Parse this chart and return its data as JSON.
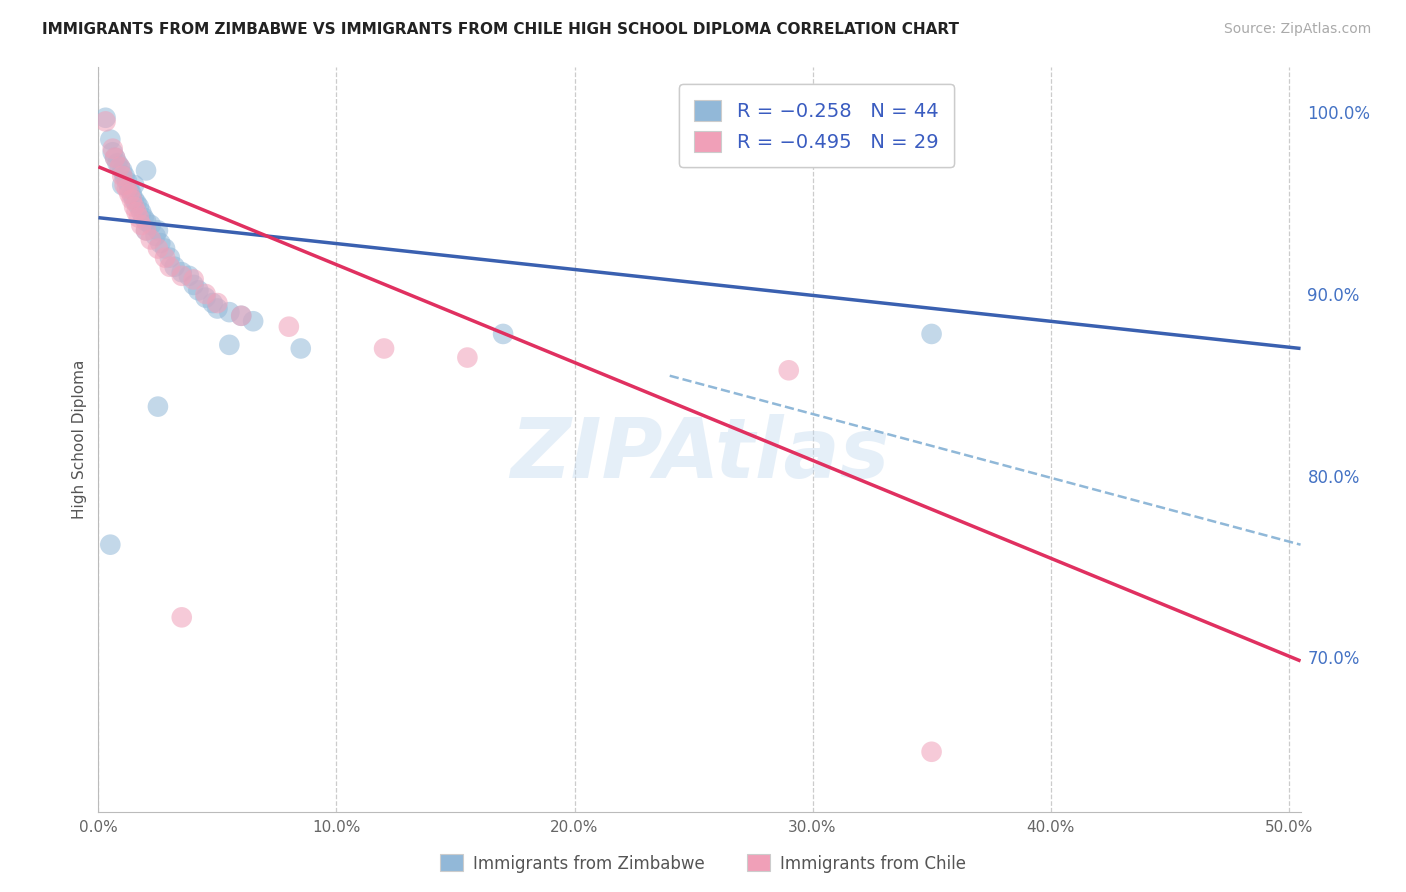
{
  "title": "IMMIGRANTS FROM ZIMBABWE VS IMMIGRANTS FROM CHILE HIGH SCHOOL DIPLOMA CORRELATION CHART",
  "source": "Source: ZipAtlas.com",
  "ylabel": "High School Diploma",
  "x_min": 0.0,
  "x_max": 0.505,
  "y_min": 0.615,
  "y_max": 1.025,
  "y_ticks": [
    0.7,
    0.8,
    0.9,
    1.0
  ],
  "y_tick_labels": [
    "70.0%",
    "80.0%",
    "90.0%",
    "100.0%"
  ],
  "x_ticks": [
    0.0,
    0.1,
    0.2,
    0.3,
    0.4,
    0.5
  ],
  "x_tick_labels": [
    "0.0%",
    "10.0%",
    "20.0%",
    "30.0%",
    "40.0%",
    "50.0%"
  ],
  "watermark": "ZIPAtlas",
  "legend_label_blue": "Immigrants from Zimbabwe",
  "legend_label_pink": "Immigrants from Chile",
  "blue_color": "#92b8d8",
  "pink_color": "#f0a0b8",
  "line_blue": "#3a60b0",
  "line_pink": "#e03060",
  "line_dashed": "#90b8d8",
  "zimbabwe_points": [
    [
      0.003,
      0.997
    ],
    [
      0.005,
      0.985
    ],
    [
      0.006,
      0.978
    ],
    [
      0.007,
      0.975
    ],
    [
      0.008,
      0.972
    ],
    [
      0.009,
      0.97
    ],
    [
      0.01,
      0.968
    ],
    [
      0.01,
      0.96
    ],
    [
      0.011,
      0.965
    ],
    [
      0.012,
      0.962
    ],
    [
      0.013,
      0.958
    ],
    [
      0.014,
      0.955
    ],
    [
      0.015,
      0.96
    ],
    [
      0.015,
      0.952
    ],
    [
      0.016,
      0.95
    ],
    [
      0.017,
      0.948
    ],
    [
      0.018,
      0.945
    ],
    [
      0.019,
      0.942
    ],
    [
      0.02,
      0.94
    ],
    [
      0.02,
      0.935
    ],
    [
      0.022,
      0.938
    ],
    [
      0.024,
      0.932
    ],
    [
      0.025,
      0.935
    ],
    [
      0.026,
      0.928
    ],
    [
      0.028,
      0.925
    ],
    [
      0.03,
      0.92
    ],
    [
      0.032,
      0.915
    ],
    [
      0.035,
      0.912
    ],
    [
      0.038,
      0.91
    ],
    [
      0.04,
      0.905
    ],
    [
      0.042,
      0.902
    ],
    [
      0.045,
      0.898
    ],
    [
      0.048,
      0.895
    ],
    [
      0.05,
      0.892
    ],
    [
      0.055,
      0.89
    ],
    [
      0.06,
      0.888
    ],
    [
      0.065,
      0.885
    ],
    [
      0.005,
      0.762
    ],
    [
      0.025,
      0.838
    ],
    [
      0.055,
      0.872
    ],
    [
      0.085,
      0.87
    ],
    [
      0.17,
      0.878
    ],
    [
      0.35,
      0.878
    ],
    [
      0.02,
      0.968
    ]
  ],
  "chile_points": [
    [
      0.003,
      0.995
    ],
    [
      0.006,
      0.98
    ],
    [
      0.007,
      0.975
    ],
    [
      0.009,
      0.97
    ],
    [
      0.01,
      0.965
    ],
    [
      0.011,
      0.96
    ],
    [
      0.012,
      0.958
    ],
    [
      0.013,
      0.955
    ],
    [
      0.014,
      0.952
    ],
    [
      0.015,
      0.948
    ],
    [
      0.016,
      0.945
    ],
    [
      0.017,
      0.942
    ],
    [
      0.018,
      0.938
    ],
    [
      0.02,
      0.935
    ],
    [
      0.022,
      0.93
    ],
    [
      0.025,
      0.925
    ],
    [
      0.028,
      0.92
    ],
    [
      0.03,
      0.915
    ],
    [
      0.035,
      0.91
    ],
    [
      0.04,
      0.908
    ],
    [
      0.045,
      0.9
    ],
    [
      0.05,
      0.895
    ],
    [
      0.06,
      0.888
    ],
    [
      0.08,
      0.882
    ],
    [
      0.12,
      0.87
    ],
    [
      0.155,
      0.865
    ],
    [
      0.29,
      0.858
    ],
    [
      0.035,
      0.722
    ],
    [
      0.35,
      0.648
    ]
  ],
  "blue_reg": [
    0.0,
    0.942,
    0.505,
    0.87
  ],
  "pink_reg": [
    0.0,
    0.97,
    0.505,
    0.698
  ],
  "dash_reg": [
    0.24,
    0.855,
    0.505,
    0.762
  ]
}
